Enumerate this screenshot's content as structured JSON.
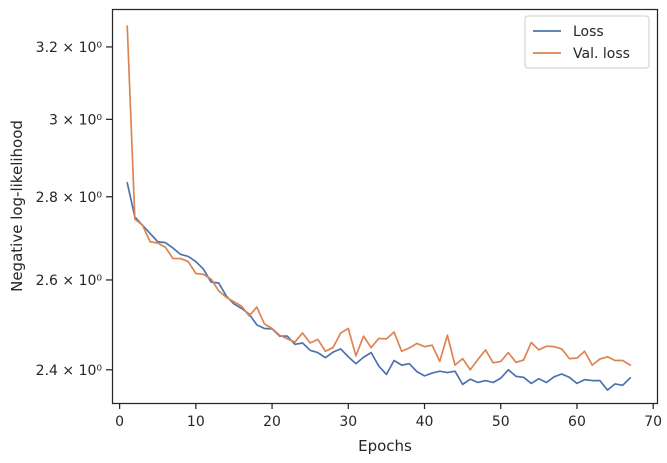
{
  "chart_data": {
    "type": "line",
    "xlabel": "Epochs",
    "ylabel": "Negative log-likelihood",
    "xlim": [
      -1,
      70.5
    ],
    "ylim": [
      2.33,
      3.31
    ],
    "yscale": "log",
    "grid": false,
    "legend_position": "top-right",
    "x_ticks": [
      0,
      10,
      20,
      30,
      40,
      50,
      60,
      70
    ],
    "x_tick_labels": [
      "0",
      "10",
      "20",
      "30",
      "40",
      "50",
      "60",
      "70"
    ],
    "y_ticks": [
      2.4,
      2.6,
      2.8,
      3.0,
      3.2
    ],
    "y_tick_labels": [
      "2.4 × 10⁰",
      "2.6 × 10⁰",
      "2.8 × 10⁰",
      "3 × 10⁰",
      "3.2 × 10⁰"
    ],
    "x": [
      1,
      2,
      3,
      4,
      5,
      6,
      7,
      8,
      9,
      10,
      11,
      12,
      13,
      14,
      15,
      16,
      17,
      18,
      19,
      20,
      21,
      22,
      23,
      24,
      25,
      26,
      27,
      28,
      29,
      30,
      31,
      32,
      33,
      34,
      35,
      36,
      37,
      38,
      39,
      40,
      41,
      42,
      43,
      44,
      45,
      46,
      47,
      48,
      49,
      50,
      51,
      52,
      53,
      54,
      55,
      56,
      57,
      58,
      59,
      60,
      61,
      62,
      63,
      64,
      65,
      66,
      67
    ],
    "series": [
      {
        "name": "Loss",
        "color": "#4c72b0",
        "values": [
          2.835,
          2.75,
          2.73,
          2.71,
          2.69,
          2.688,
          2.675,
          2.66,
          2.655,
          2.643,
          2.625,
          2.595,
          2.593,
          2.563,
          2.545,
          2.535,
          2.522,
          2.498,
          2.49,
          2.489,
          2.473,
          2.473,
          2.455,
          2.458,
          2.442,
          2.437,
          2.426,
          2.438,
          2.445,
          2.428,
          2.413,
          2.427,
          2.437,
          2.408,
          2.39,
          2.42,
          2.41,
          2.413,
          2.396,
          2.387,
          2.393,
          2.397,
          2.394,
          2.397,
          2.369,
          2.38,
          2.373,
          2.377,
          2.373,
          2.382,
          2.4,
          2.386,
          2.384,
          2.371,
          2.381,
          2.373,
          2.385,
          2.391,
          2.384,
          2.371,
          2.379,
          2.377,
          2.377,
          2.357,
          2.37,
          2.367,
          2.383
        ]
      },
      {
        "name": "Val. loss",
        "color": "#dd8452",
        "values": [
          3.26,
          2.745,
          2.73,
          2.69,
          2.687,
          2.677,
          2.65,
          2.65,
          2.643,
          2.615,
          2.613,
          2.602,
          2.575,
          2.56,
          2.55,
          2.54,
          2.518,
          2.538,
          2.5,
          2.49,
          2.475,
          2.467,
          2.46,
          2.48,
          2.458,
          2.466,
          2.44,
          2.448,
          2.48,
          2.49,
          2.43,
          2.473,
          2.448,
          2.468,
          2.467,
          2.482,
          2.44,
          2.447,
          2.457,
          2.45,
          2.453,
          2.418,
          2.475,
          2.41,
          2.424,
          2.4,
          2.422,
          2.443,
          2.415,
          2.418,
          2.437,
          2.416,
          2.421,
          2.459,
          2.443,
          2.451,
          2.45,
          2.445,
          2.424,
          2.425,
          2.44,
          2.41,
          2.423,
          2.428,
          2.42,
          2.42,
          2.41
        ]
      }
    ]
  }
}
